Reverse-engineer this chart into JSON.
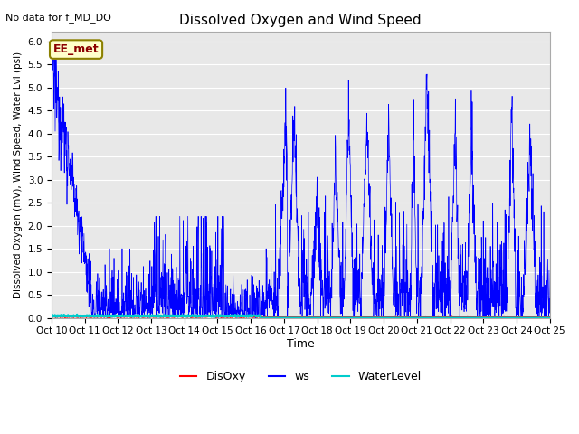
{
  "title": "Dissolved Oxygen and Wind Speed",
  "top_left_text": "No data for f_MD_DO",
  "annotation_text": "EE_met",
  "xlabel": "Time",
  "ylabel": "Dissolved Oxygen (mV), Wind Speed, Water Lvl (psi)",
  "ylim": [
    0.0,
    6.2
  ],
  "yticks": [
    0.0,
    0.5,
    1.0,
    1.5,
    2.0,
    2.5,
    3.0,
    3.5,
    4.0,
    4.5,
    5.0,
    5.5,
    6.0
  ],
  "xtick_labels": [
    "Oct 10",
    "Oct 11",
    "Oct 12",
    "Oct 13",
    "Oct 14",
    "Oct 15",
    "Oct 16",
    "Oct 17",
    "Oct 18",
    "Oct 19",
    "Oct 20",
    "Oct 21",
    "Oct 22",
    "Oct 23",
    "Oct 24",
    "Oct 25"
  ],
  "bg_color": "#e8e8e8",
  "grid_color": "#ffffff",
  "ws_color": "#0000ff",
  "disoxy_color": "#ff0000",
  "water_level_color": "#00cccc",
  "legend_labels": [
    "DisOxy",
    "ws",
    "WaterLevel"
  ],
  "seed": 12345
}
